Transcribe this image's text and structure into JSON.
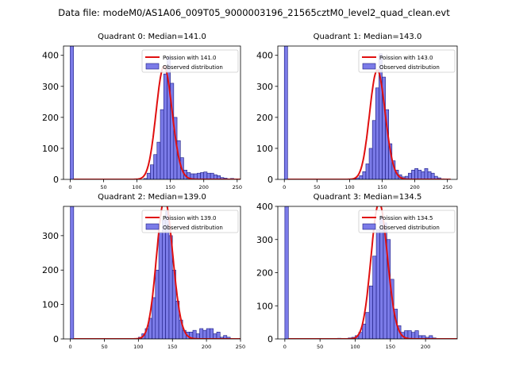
{
  "title": "Data file: modeM0/AS1A06_009T05_9000003196_21565cztM0_level2_quad_clean.evt",
  "colors": {
    "bar_fill": "#7b7be8",
    "bar_edge": "#1a1a80",
    "poisson_line": "#e01010",
    "legend_border": "#cccccc"
  },
  "chart_data": [
    {
      "type": "bar",
      "title": "Quadrant 0: Median=141.0",
      "median": 141.0,
      "legend": [
        "Poission with 141.0",
        "Observed distribution"
      ],
      "xlim": [
        -10,
        255
      ],
      "ylim": [
        0,
        430
      ],
      "xticks": [
        0,
        50,
        100,
        150,
        200,
        250
      ],
      "yticks": [
        0,
        100,
        200,
        300,
        400
      ],
      "bin_width": 5,
      "bins": [
        0,
        110,
        115,
        120,
        125,
        130,
        135,
        140,
        145,
        150,
        155,
        160,
        165,
        170,
        175,
        180,
        185,
        190,
        195,
        200,
        205,
        210,
        215,
        220,
        225,
        230,
        235,
        240,
        245
      ],
      "values": [
        430,
        3,
        20,
        47,
        80,
        120,
        225,
        340,
        395,
        310,
        200,
        125,
        70,
        30,
        22,
        18,
        18,
        20,
        22,
        24,
        20,
        20,
        15,
        12,
        6,
        4,
        2,
        3,
        1
      ]
    },
    {
      "type": "bar",
      "title": "Quadrant 1: Median=143.0",
      "median": 143.0,
      "legend": [
        "Poission with 143.0",
        "Observed distribution"
      ],
      "xlim": [
        -10,
        265
      ],
      "ylim": [
        0,
        430
      ],
      "xticks": [
        0,
        50,
        100,
        150,
        200,
        250
      ],
      "yticks": [
        0,
        100,
        200,
        300,
        400
      ],
      "bin_width": 5,
      "bins": [
        0,
        105,
        110,
        115,
        120,
        125,
        130,
        135,
        140,
        145,
        150,
        155,
        160,
        165,
        170,
        175,
        180,
        185,
        190,
        195,
        200,
        205,
        210,
        215,
        220,
        225,
        230,
        235,
        240
      ],
      "values": [
        430,
        2,
        5,
        12,
        25,
        50,
        100,
        190,
        295,
        405,
        330,
        225,
        115,
        60,
        30,
        15,
        8,
        10,
        20,
        30,
        35,
        30,
        25,
        35,
        25,
        20,
        10,
        5,
        2
      ]
    },
    {
      "type": "bar",
      "title": "Quadrant 2: Median=139.0",
      "median": 139.0,
      "legend": [
        "Poission with 139.0",
        "Observed distribution"
      ],
      "xlim": [
        -10,
        250
      ],
      "ylim": [
        0,
        385
      ],
      "xticks": [
        0,
        50,
        100,
        150,
        200,
        250
      ],
      "yticks": [
        0,
        100,
        200,
        300
      ],
      "bin_width": 5,
      "bins": [
        0,
        100,
        105,
        110,
        115,
        120,
        125,
        130,
        135,
        140,
        145,
        150,
        155,
        160,
        165,
        170,
        175,
        180,
        185,
        190,
        195,
        200,
        205,
        210,
        215,
        220,
        225,
        230,
        235
      ],
      "values": [
        385,
        5,
        15,
        30,
        60,
        120,
        200,
        310,
        345,
        370,
        300,
        200,
        110,
        55,
        25,
        20,
        20,
        25,
        15,
        30,
        25,
        30,
        30,
        15,
        20,
        5,
        10,
        5,
        1
      ]
    },
    {
      "type": "bar",
      "title": "Quadrant 3: Median=134.5",
      "median": 134.5,
      "legend": [
        "Poission with 134.5",
        "Observed distribution"
      ],
      "xlim": [
        -10,
        245
      ],
      "ylim": [
        0,
        400
      ],
      "xticks": [
        0,
        50,
        100,
        150,
        200
      ],
      "yticks": [
        0,
        100,
        200,
        300,
        400
      ],
      "bin_width": 5,
      "bins": [
        0,
        55,
        75,
        90,
        95,
        100,
        105,
        110,
        115,
        120,
        125,
        130,
        135,
        140,
        145,
        150,
        155,
        160,
        165,
        170,
        175,
        180,
        185,
        190,
        195,
        200,
        205,
        210,
        215
      ],
      "values": [
        400,
        1,
        2,
        3,
        5,
        10,
        20,
        45,
        80,
        160,
        250,
        330,
        370,
        350,
        300,
        180,
        90,
        40,
        20,
        25,
        25,
        20,
        25,
        10,
        10,
        5,
        10,
        3,
        1
      ]
    }
  ]
}
